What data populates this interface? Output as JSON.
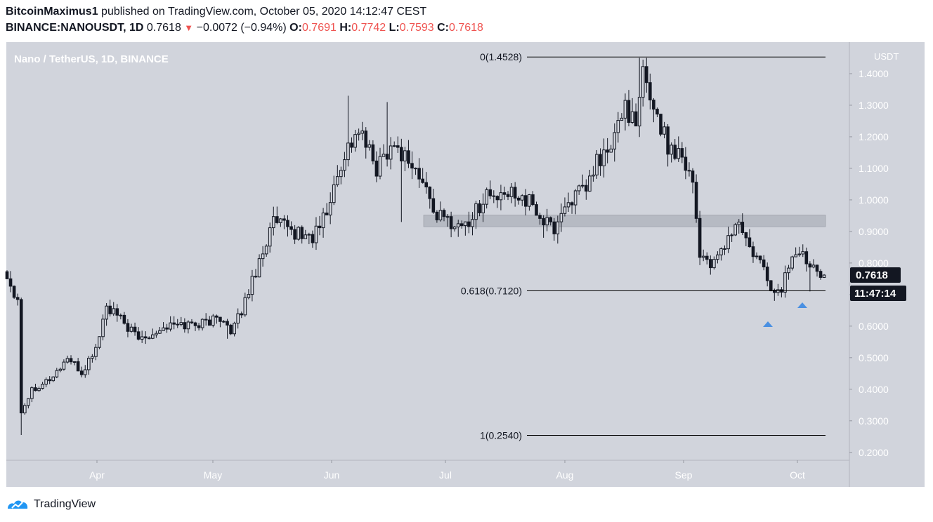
{
  "header": {
    "author": "BitcoinMaximus1",
    "published": " published on TradingView.com, October 05, 2020 14:12:47 CEST",
    "symbol": "BINANCE:NANOUSDT, 1D",
    "last": "0.7618",
    "change": "−0.0072 (−0.94%)",
    "o_label": "O:",
    "o_val": "0.7691",
    "h_label": "H:",
    "h_val": "0.7742",
    "l_label": "L:",
    "l_val": "0.7593",
    "c_label": "C:",
    "c_val": "0.7618"
  },
  "footer": {
    "brand": "TradingView"
  },
  "colors": {
    "background": "#d1d4dc",
    "candle": "#131722",
    "line": "#000000",
    "zone": "#b2b5be",
    "marker": "#4a90e2",
    "down": "#ef5350"
  },
  "chart_data": {
    "type": "candlestick",
    "title": "Nano / TetherUS, 1D, BINANCE",
    "currency": "USDT",
    "ylim": [
      0.175,
      1.5
    ],
    "y_ticks": [
      "0.2000",
      "0.3000",
      "0.4000",
      "0.5000",
      "0.6000",
      "0.7000",
      "0.8000",
      "0.9000",
      "1.0000",
      "1.1000",
      "1.2000",
      "1.3000",
      "1.4000"
    ],
    "x_ticks": [
      "Apr",
      "May",
      "Jun",
      "Jul",
      "Aug",
      "Sep",
      "Oct"
    ],
    "price_label": "0.7618",
    "countdown": "11:47:14",
    "fib_levels": [
      {
        "label": "0(1.4528)",
        "value": 1.4528
      },
      {
        "label": "0.618(0.7120)",
        "value": 0.712
      },
      {
        "label": "1(0.2540)",
        "value": 0.254
      }
    ],
    "resistance_zone": [
      0.915,
      0.952
    ],
    "markers": [
      {
        "close": 0.73,
        "position": "below"
      },
      {
        "close": 0.74,
        "position": "below"
      }
    ],
    "anchors": [
      {
        "t": 0,
        "p": 0.75
      },
      {
        "t": 3,
        "p": 0.69
      },
      {
        "t": 4,
        "p": 0.33
      },
      {
        "t": 7,
        "p": 0.4
      },
      {
        "t": 13,
        "p": 0.44
      },
      {
        "t": 17,
        "p": 0.5
      },
      {
        "t": 21,
        "p": 0.45
      },
      {
        "t": 25,
        "p": 0.53
      },
      {
        "t": 28,
        "p": 0.66
      },
      {
        "t": 32,
        "p": 0.62
      },
      {
        "t": 37,
        "p": 0.56
      },
      {
        "t": 45,
        "p": 0.6
      },
      {
        "t": 55,
        "p": 0.61
      },
      {
        "t": 61,
        "p": 0.63
      },
      {
        "t": 63,
        "p": 0.57
      },
      {
        "t": 66,
        "p": 0.65
      },
      {
        "t": 72,
        "p": 0.84
      },
      {
        "t": 75,
        "p": 0.93
      },
      {
        "t": 80,
        "p": 0.9
      },
      {
        "t": 86,
        "p": 0.88
      },
      {
        "t": 90,
        "p": 0.96
      },
      {
        "t": 95,
        "p": 1.15
      },
      {
        "t": 99,
        "p": 1.22
      },
      {
        "t": 104,
        "p": 1.1
      },
      {
        "t": 108,
        "p": 1.18
      },
      {
        "t": 113,
        "p": 1.13
      },
      {
        "t": 118,
        "p": 1.03
      },
      {
        "t": 121,
        "p": 0.95
      },
      {
        "t": 127,
        "p": 0.92
      },
      {
        "t": 130,
        "p": 0.93
      },
      {
        "t": 135,
        "p": 1.02
      },
      {
        "t": 139,
        "p": 1.0
      },
      {
        "t": 143,
        "p": 1.03
      },
      {
        "t": 148,
        "p": 0.98
      },
      {
        "t": 151,
        "p": 0.93
      },
      {
        "t": 154,
        "p": 0.91
      },
      {
        "t": 158,
        "p": 1.0
      },
      {
        "t": 163,
        "p": 1.03
      },
      {
        "t": 166,
        "p": 1.12
      },
      {
        "t": 170,
        "p": 1.16
      },
      {
        "t": 174,
        "p": 1.31
      },
      {
        "t": 177,
        "p": 1.22
      },
      {
        "t": 179,
        "p": 1.4
      },
      {
        "t": 182,
        "p": 1.3
      },
      {
        "t": 186,
        "p": 1.17
      },
      {
        "t": 190,
        "p": 1.15
      },
      {
        "t": 193,
        "p": 1.06
      },
      {
        "t": 195,
        "p": 0.83
      },
      {
        "t": 199,
        "p": 0.79
      },
      {
        "t": 203,
        "p": 0.88
      },
      {
        "t": 206,
        "p": 0.93
      },
      {
        "t": 209,
        "p": 0.84
      },
      {
        "t": 213,
        "p": 0.78
      },
      {
        "t": 216,
        "p": 0.7
      },
      {
        "t": 218,
        "p": 0.72
      },
      {
        "t": 221,
        "p": 0.83
      },
      {
        "t": 224,
        "p": 0.82
      },
      {
        "t": 227,
        "p": 0.8
      },
      {
        "t": 230,
        "p": 0.7618
      }
    ]
  }
}
